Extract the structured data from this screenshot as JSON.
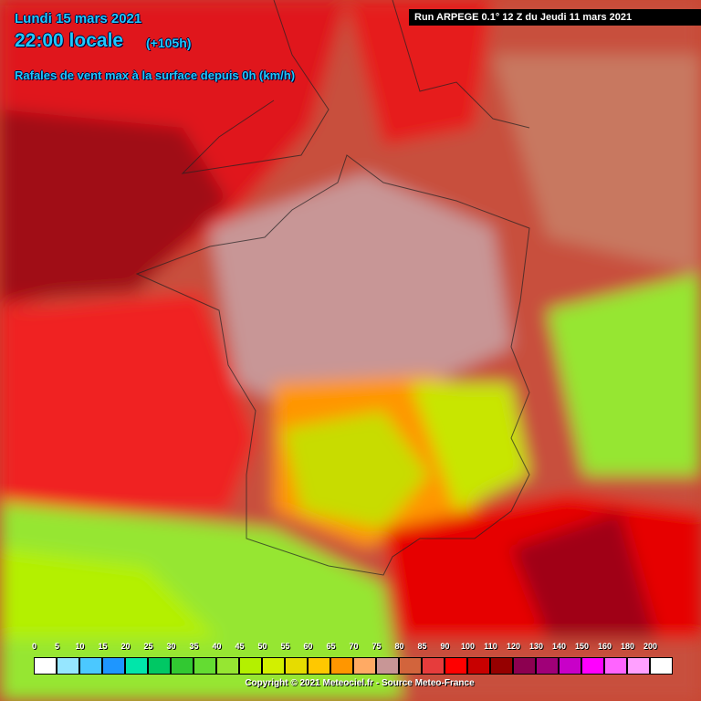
{
  "header": {
    "date": "Lundi 15 mars 2021",
    "time": "22:00 locale",
    "lead": "(+105h)",
    "subtitle": "Rafales de vent max à la surface depuis 0h (km/h)"
  },
  "run": "Run ARPEGE 0.1° 12 Z du Jeudi 11 mars 2021",
  "legend": {
    "labels": [
      0,
      5,
      10,
      15,
      20,
      25,
      30,
      35,
      40,
      45,
      50,
      55,
      60,
      65,
      70,
      75,
      80,
      85,
      90,
      100,
      110,
      120,
      130,
      140,
      150,
      160,
      180,
      200
    ],
    "colors": [
      "#ffffff",
      "#96e6ff",
      "#4bc8ff",
      "#1e96ff",
      "#00e6aa",
      "#00c864",
      "#32c832",
      "#64dc32",
      "#96e632",
      "#b4f000",
      "#d2f000",
      "#e6dc00",
      "#ffc800",
      "#ff9600",
      "#ffaa64",
      "#c89696",
      "#d2643c",
      "#e63c3c",
      "#ff0000",
      "#c80000",
      "#960000",
      "#8c0050",
      "#a00078",
      "#c800c8",
      "#ff00ff",
      "#ff64ff",
      "#ffa0ff",
      "#ffffff"
    ]
  },
  "copyright": "Copyright © 2021 Meteociel.fr - Source Meteo-France"
}
